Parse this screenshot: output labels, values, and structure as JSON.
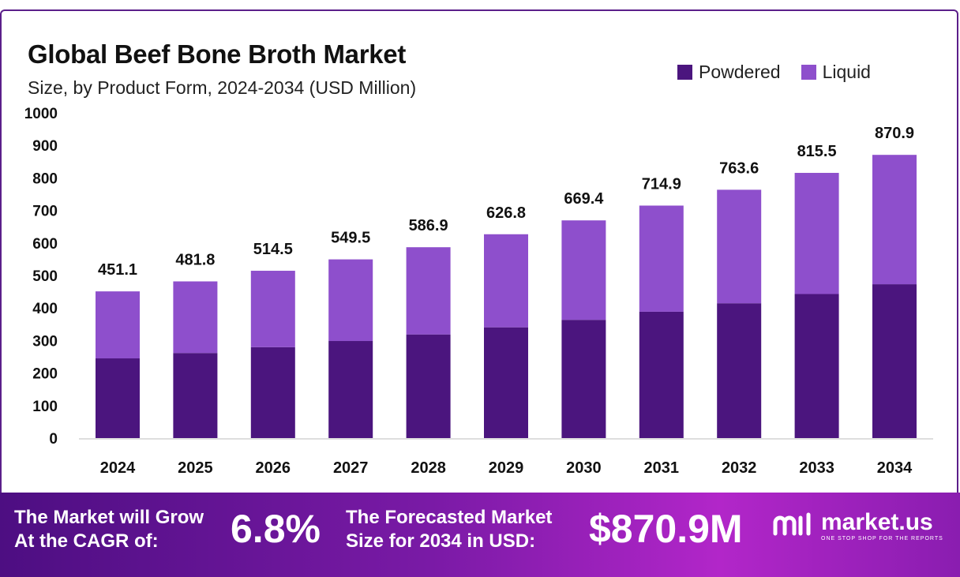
{
  "header": {
    "title": "Global Beef Bone Broth Market",
    "subtitle": "Size, by Product Form, 2024-2034 (USD Million)"
  },
  "colors": {
    "powdered": "#4b157e",
    "liquid": "#8e4fcc",
    "accent": "#5b1f8a"
  },
  "chart_data": {
    "type": "bar",
    "stacked": true,
    "categories": [
      "2024",
      "2025",
      "2026",
      "2027",
      "2028",
      "2029",
      "2030",
      "2031",
      "2032",
      "2033",
      "2034"
    ],
    "series": [
      {
        "name": "Powdered",
        "values": [
          245.1,
          261.6,
          279.6,
          298.5,
          318.7,
          340.6,
          363.6,
          388.5,
          414.6,
          443.0,
          473.1
        ]
      },
      {
        "name": "Liquid",
        "values": [
          206.0,
          220.2,
          234.9,
          251.0,
          268.2,
          286.2,
          305.8,
          326.4,
          349.0,
          372.5,
          397.8
        ]
      }
    ],
    "totals": [
      451.1,
      481.8,
      514.5,
      549.5,
      586.9,
      626.8,
      669.4,
      714.9,
      763.6,
      815.5,
      870.9
    ],
    "total_labels": [
      "451.1",
      "481.8",
      "514.5",
      "549.5",
      "586.9",
      "626.8",
      "669.4",
      "714.9",
      "763.6",
      "815.5",
      "870.9"
    ],
    "yticks": [
      "0",
      "100",
      "200",
      "300",
      "400",
      "500",
      "600",
      "700",
      "800",
      "900",
      "1000"
    ],
    "ylim": [
      0,
      1000
    ],
    "grid": false,
    "legend": "top-right"
  },
  "footer": {
    "cagr_text_line1": "The Market will Grow",
    "cagr_text_line2": "At the CAGR of:",
    "cagr_value": "6.8%",
    "forecast_text_line1": "The Forecasted Market",
    "forecast_text_line2": "Size for 2034 in USD:",
    "forecast_value": "$870.9M",
    "brand_name": "market.us",
    "brand_tagline": "ONE STOP SHOP FOR THE REPORTS"
  }
}
